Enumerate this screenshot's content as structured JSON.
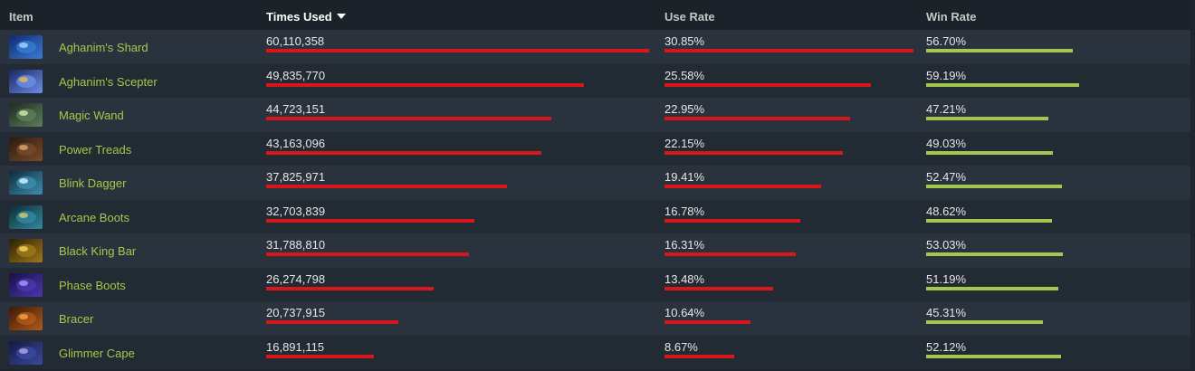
{
  "headers": {
    "item": "Item",
    "times_used": "Times Used",
    "use_rate": "Use Rate",
    "win_rate": "Win Rate"
  },
  "sort": {
    "column": "times_used",
    "direction": "desc"
  },
  "colors": {
    "bar_red": "#d9161c",
    "bar_green": "#a3c751",
    "item_link": "#a8c74a"
  },
  "rows": [
    {
      "name": "Aghanim's Shard",
      "times_used": "60,110,358",
      "use_rate": "30.85%",
      "win_rate": "56.70%",
      "icon": "aghanims-shard-icon",
      "swatch": [
        "#0f2a6a",
        "#3a7bd5",
        "#9fd0ff"
      ]
    },
    {
      "name": "Aghanim's Scepter",
      "times_used": "49,835,770",
      "use_rate": "25.58%",
      "win_rate": "59.19%",
      "icon": "aghanims-scepter-icon",
      "swatch": [
        "#1a2660",
        "#6c8ee8",
        "#e0b84a"
      ]
    },
    {
      "name": "Magic Wand",
      "times_used": "44,723,151",
      "use_rate": "22.95%",
      "win_rate": "47.21%",
      "icon": "magic-wand-icon",
      "swatch": [
        "#1c2a22",
        "#5f7d5a",
        "#c9e3b0"
      ]
    },
    {
      "name": "Power Treads",
      "times_used": "43,163,096",
      "use_rate": "22.15%",
      "win_rate": "49.03%",
      "icon": "power-treads-icon",
      "swatch": [
        "#2a1a10",
        "#7a4a2a",
        "#d6a070"
      ]
    },
    {
      "name": "Blink Dagger",
      "times_used": "37,825,971",
      "use_rate": "19.41%",
      "win_rate": "52.47%",
      "icon": "blink-dagger-icon",
      "swatch": [
        "#0f2a3a",
        "#3d8fb0",
        "#cfeeff"
      ]
    },
    {
      "name": "Arcane Boots",
      "times_used": "32,703,839",
      "use_rate": "16.78%",
      "win_rate": "48.62%",
      "icon": "arcane-boots-icon",
      "swatch": [
        "#102a30",
        "#2f8aa0",
        "#d9c070"
      ]
    },
    {
      "name": "Black King Bar",
      "times_used": "31,788,810",
      "use_rate": "16.31%",
      "win_rate": "53.03%",
      "icon": "black-king-bar-icon",
      "swatch": [
        "#2a2008",
        "#a07818",
        "#f0d060"
      ]
    },
    {
      "name": "Phase Boots",
      "times_used": "26,274,798",
      "use_rate": "13.48%",
      "win_rate": "51.19%",
      "icon": "phase-boots-icon",
      "swatch": [
        "#1a1040",
        "#4a38b0",
        "#a890ff"
      ]
    },
    {
      "name": "Bracer",
      "times_used": "20,737,915",
      "use_rate": "10.64%",
      "win_rate": "45.31%",
      "icon": "bracer-icon",
      "swatch": [
        "#3a1808",
        "#b05a18",
        "#f0a040"
      ]
    },
    {
      "name": "Glimmer Cape",
      "times_used": "16,891,115",
      "use_rate": "8.67%",
      "win_rate": "52.12%",
      "icon": "glimmer-cape-icon",
      "swatch": [
        "#141840",
        "#3a4aa0",
        "#b0a0e0"
      ]
    }
  ]
}
